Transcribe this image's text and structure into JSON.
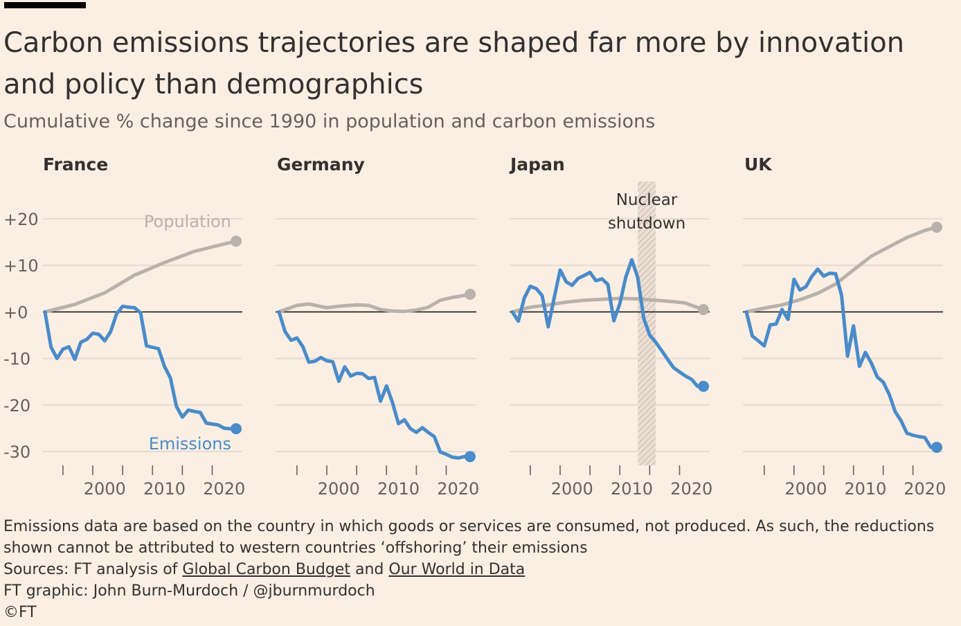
{
  "title": "Carbon emissions trajectories are shaped far more by innovation and policy than demographics",
  "subtitle": "Cumulative % change since 1990 in population and carbon emissions",
  "colors": {
    "background": "#fbefe4",
    "population": "#b9b1ab",
    "emissions": "#4a8bc9",
    "gridline": "#e6dad0",
    "zero_line": "#1a1a1a",
    "shade": "#c9beb4"
  },
  "labels": {
    "population": "Population",
    "emissions": "Emissions",
    "annotation_line1": "Nuclear",
    "annotation_line2": "shutdown"
  },
  "footer": {
    "note": "Emissions data are based on the country in which goods or services are consumed, not produced. As such, the reductions shown cannot be attributed to western countries ‘offshoring’ their emissions",
    "sources_prefix": "Sources: FT analysis of ",
    "source1": "Global Carbon Budget",
    "sources_and": " and ",
    "source2": "Our World in Data",
    "credit": "FT graphic: John Burn-Murdoch / @jburnmurdoch",
    "copyright": "©FT"
  },
  "chart_data": [
    {
      "type": "line",
      "title": "France",
      "xlim": [
        1990,
        2022
      ],
      "ylim": [
        -30,
        20
      ],
      "yticks": [
        "+20",
        "+10",
        "+0",
        "-10",
        "-20",
        "-30"
      ],
      "ytick_values": [
        20,
        10,
        0,
        -10,
        -20,
        -30
      ],
      "xticks": [
        "2000",
        "2010",
        "2020"
      ],
      "xtick_values": [
        2000,
        2010,
        2020
      ],
      "minor_xtick_values": [
        1993,
        1998,
        2003,
        2008,
        2013,
        2018
      ],
      "series": [
        {
          "name": "Population",
          "x": [
            1990,
            1995,
            2000,
            2005,
            2010,
            2015,
            2020,
            2022
          ],
          "values": [
            0,
            1.6,
            4.1,
            7.9,
            10.6,
            13.0,
            14.6,
            15.2
          ]
        },
        {
          "name": "Emissions",
          "x": [
            1990,
            1991,
            1992,
            1993,
            1994,
            1995,
            1996,
            1997,
            1998,
            1999,
            2000,
            2001,
            2002,
            2003,
            2004,
            2005,
            2006,
            2007,
            2008,
            2009,
            2010,
            2011,
            2012,
            2013,
            2014,
            2015,
            2016,
            2017,
            2018,
            2019,
            2020,
            2021,
            2022
          ],
          "values": [
            0,
            -7.5,
            -10,
            -8,
            -7.5,
            -10.2,
            -6.5,
            -5.9,
            -4.6,
            -4.8,
            -6.2,
            -4.2,
            -0.4,
            1.2,
            1.0,
            0.9,
            -0.2,
            -7.3,
            -7.6,
            -7.9,
            -11.7,
            -14.2,
            -20.3,
            -22.6,
            -21.1,
            -21.4,
            -21.6,
            -23.9,
            -24.1,
            -24.3,
            -25.0,
            -25.1,
            -25.1
          ]
        }
      ]
    },
    {
      "type": "line",
      "title": "Germany",
      "xlim": [
        1990,
        2022
      ],
      "ylim": [
        -30,
        20
      ],
      "series": [
        {
          "name": "Population",
          "x": [
            1990,
            1993,
            1995,
            1998,
            2000,
            2003,
            2005,
            2007,
            2009,
            2011,
            2013,
            2015,
            2017,
            2019,
            2020,
            2022
          ],
          "values": [
            0,
            1.4,
            1.7,
            0.9,
            1.2,
            1.5,
            1.4,
            0.5,
            0.2,
            0.1,
            0.4,
            1.0,
            2.5,
            3.1,
            3.3,
            3.8
          ]
        },
        {
          "name": "Emissions",
          "x": [
            1990,
            1991,
            1992,
            1993,
            1994,
            1995,
            1996,
            1997,
            1998,
            1999,
            2000,
            2001,
            2002,
            2003,
            2004,
            2005,
            2006,
            2007,
            2008,
            2009,
            2010,
            2011,
            2012,
            2013,
            2014,
            2015,
            2016,
            2017,
            2018,
            2019,
            2020,
            2021,
            2022
          ],
          "values": [
            0,
            -4.2,
            -6.1,
            -5.6,
            -7.5,
            -10.8,
            -10.6,
            -9.8,
            -10.5,
            -10.7,
            -14.9,
            -11.8,
            -13.8,
            -13.2,
            -13.3,
            -14.3,
            -14.1,
            -19.2,
            -15.9,
            -19.5,
            -24.0,
            -23.2,
            -25.1,
            -25.9,
            -24.9,
            -25.9,
            -26.8,
            -30.1,
            -30.6,
            -31.2,
            -31.4,
            -31.1,
            -31.1
          ]
        }
      ]
    },
    {
      "type": "line",
      "title": "Japan",
      "xlim": [
        1990,
        2022
      ],
      "ylim": [
        -30,
        20
      ],
      "annotation": {
        "text": "Nuclear shutdown",
        "x_range": [
          2011,
          2014
        ]
      },
      "series": [
        {
          "name": "Population",
          "x": [
            1990,
            1993,
            1996,
            1999,
            2002,
            2005,
            2008,
            2011,
            2014,
            2017,
            2019,
            2020,
            2022
          ],
          "values": [
            0,
            1.0,
            1.5,
            2.1,
            2.5,
            2.7,
            2.9,
            2.8,
            2.5,
            2.2,
            1.9,
            1.4,
            0.5
          ]
        },
        {
          "name": "Emissions",
          "x": [
            1990,
            1991,
            1992,
            1993,
            1994,
            1995,
            1996,
            1997,
            1998,
            1999,
            2000,
            2001,
            2002,
            2003,
            2004,
            2005,
            2006,
            2007,
            2008,
            2009,
            2010,
            2011,
            2012,
            2013,
            2014,
            2015,
            2016,
            2017,
            2018,
            2019,
            2020,
            2021,
            2022
          ],
          "values": [
            0,
            -2,
            3,
            5.5,
            5,
            3.5,
            -3.2,
            3,
            9,
            6.5,
            5.7,
            7.2,
            7.8,
            8.5,
            6.7,
            7.1,
            5.9,
            -1.9,
            1.8,
            7.5,
            11.2,
            7.4,
            -1.4,
            -5.0,
            -6.5,
            -8.3,
            -10.2,
            -12.0,
            -12.9,
            -13.8,
            -14.5,
            -16.0,
            -16.0
          ]
        }
      ]
    },
    {
      "type": "line",
      "title": "UK",
      "xlim": [
        1990,
        2022
      ],
      "ylim": [
        -30,
        20
      ],
      "series": [
        {
          "name": "Population",
          "x": [
            1990,
            1993,
            1996,
            1999,
            2002,
            2005,
            2008,
            2011,
            2014,
            2017,
            2020,
            2022
          ],
          "values": [
            0,
            0.8,
            1.5,
            2.6,
            4.0,
            6.0,
            9.0,
            12.0,
            14.0,
            16.0,
            17.5,
            18.2
          ]
        },
        {
          "name": "Emissions",
          "x": [
            1990,
            1991,
            1992,
            1993,
            1994,
            1995,
            1996,
            1997,
            1998,
            1999,
            2000,
            2001,
            2002,
            2003,
            2004,
            2005,
            2006,
            2007,
            2008,
            2009,
            2010,
            2011,
            2012,
            2013,
            2014,
            2015,
            2016,
            2017,
            2018,
            2019,
            2020,
            2021,
            2022
          ],
          "values": [
            0,
            -5.2,
            -6.2,
            -7.3,
            -2.8,
            -2.6,
            0.5,
            -1.6,
            7.0,
            4.7,
            5.4,
            7.6,
            9.2,
            7.7,
            8.3,
            8.2,
            3.6,
            -9.5,
            -3.0,
            -11.7,
            -8.7,
            -11.0,
            -14.0,
            -15.1,
            -17.7,
            -21.4,
            -23.4,
            -26.1,
            -26.5,
            -26.8,
            -27.0,
            -29.1,
            -29.1
          ]
        }
      ]
    }
  ]
}
